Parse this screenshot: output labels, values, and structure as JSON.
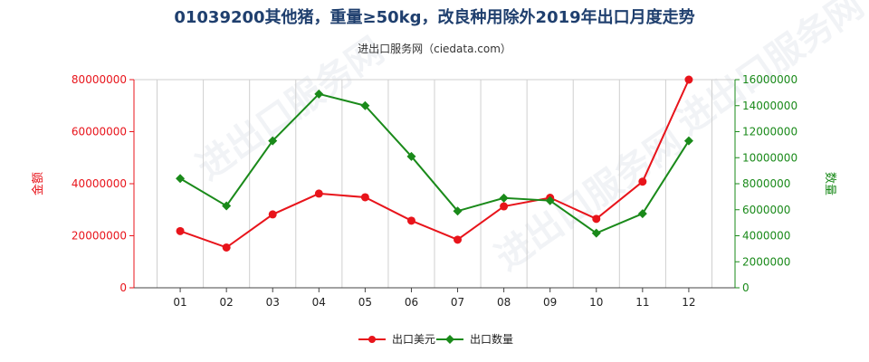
{
  "page": {
    "title": "01039200其他猪，重量≥50kg，改良种用除外2019年出口月度走势",
    "subtitle": "进出口服务网（ciedata.com）",
    "watermark": "进出口服务网"
  },
  "colors": {
    "amount": "#e8141b",
    "quantity": "#1a8a1a",
    "title": "#1f3f6e",
    "grid": "#cfcfcf",
    "axis": "#444444"
  },
  "chart_data": {
    "type": "line",
    "categories": [
      "01",
      "02",
      "03",
      "04",
      "05",
      "06",
      "07",
      "08",
      "09",
      "10",
      "11",
      "12"
    ],
    "y_left": {
      "label": "金额",
      "ylim": [
        0,
        80000000
      ],
      "ticks": [
        0,
        20000000,
        40000000,
        60000000,
        80000000
      ],
      "tick_labels": [
        "0",
        "20000000",
        "40000000",
        "60000000",
        "80000000"
      ]
    },
    "y_right": {
      "label": "数量",
      "ylim": [
        0,
        16000000
      ],
      "ticks": [
        0,
        2000000,
        4000000,
        6000000,
        8000000,
        10000000,
        12000000,
        14000000,
        16000000
      ],
      "tick_labels": [
        "0",
        "2000000",
        "4000000",
        "6000000",
        "8000000",
        "10000000",
        "12000000",
        "14000000",
        "16000000"
      ]
    },
    "series": [
      {
        "name": "出口美元",
        "axis": "left",
        "marker": "circle",
        "values": [
          21800000,
          15500000,
          28200000,
          36200000,
          34800000,
          25800000,
          18500000,
          31300000,
          34600000,
          26500000,
          40800000,
          80000000
        ]
      },
      {
        "name": "出口数量",
        "axis": "right",
        "marker": "diamond",
        "values": [
          8400000,
          6300000,
          11300000,
          14900000,
          14000000,
          10100000,
          5900000,
          6900000,
          6700000,
          4200000,
          5700000,
          11300000
        ]
      }
    ],
    "grid": "vertical",
    "legend": "bottom-center"
  }
}
